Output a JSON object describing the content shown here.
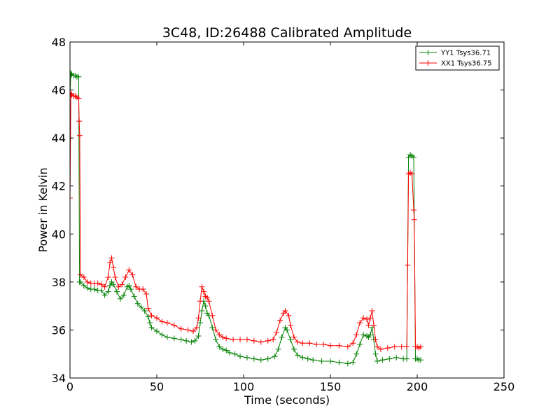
{
  "chart_data": {
    "type": "line",
    "title": "3C48, ID:26488 Calibrated Amplitude",
    "xlabel": "Time (seconds)",
    "ylabel": "Power in Kelvin",
    "xlim": [
      0,
      250
    ],
    "ylim": [
      34,
      48
    ],
    "xticks": [
      0,
      50,
      100,
      150,
      200,
      250
    ],
    "yticks": [
      34,
      36,
      38,
      40,
      42,
      44,
      46,
      48
    ],
    "grid": false,
    "legend_position": "top-right",
    "marker": "+",
    "series": [
      {
        "name": "YY1 Tsys36.71",
        "color": "#008000",
        "points": [
          [
            0,
            45.8
          ],
          [
            0.5,
            46.7
          ],
          [
            1,
            46.65
          ],
          [
            2,
            46.6
          ],
          [
            3,
            46.6
          ],
          [
            4,
            46.55
          ],
          [
            5,
            46.55
          ],
          [
            5.5,
            38.0
          ],
          [
            6,
            38.0
          ],
          [
            8,
            37.85
          ],
          [
            10,
            37.75
          ],
          [
            12,
            37.7
          ],
          [
            14,
            37.7
          ],
          [
            16,
            37.65
          ],
          [
            18,
            37.65
          ],
          [
            20,
            37.45
          ],
          [
            22,
            37.6
          ],
          [
            23,
            37.85
          ],
          [
            24,
            38.0
          ],
          [
            25,
            37.9
          ],
          [
            27,
            37.6
          ],
          [
            29,
            37.3
          ],
          [
            31,
            37.45
          ],
          [
            33,
            37.8
          ],
          [
            34,
            37.85
          ],
          [
            35,
            37.7
          ],
          [
            37,
            37.4
          ],
          [
            39,
            37.1
          ],
          [
            41,
            36.95
          ],
          [
            43,
            36.8
          ],
          [
            45,
            36.55
          ],
          [
            46,
            36.3
          ],
          [
            47,
            36.1
          ],
          [
            50,
            35.95
          ],
          [
            53,
            35.8
          ],
          [
            56,
            35.7
          ],
          [
            60,
            35.65
          ],
          [
            64,
            35.6
          ],
          [
            67,
            35.55
          ],
          [
            70,
            35.5
          ],
          [
            72,
            35.55
          ],
          [
            74,
            35.75
          ],
          [
            75,
            36.3
          ],
          [
            76,
            36.8
          ],
          [
            77,
            37.2
          ],
          [
            78,
            37.0
          ],
          [
            79,
            36.7
          ],
          [
            80,
            36.6
          ],
          [
            82,
            36.1
          ],
          [
            84,
            35.6
          ],
          [
            86,
            35.3
          ],
          [
            88,
            35.2
          ],
          [
            90,
            35.15
          ],
          [
            92,
            35.05
          ],
          [
            95,
            35.0
          ],
          [
            98,
            34.9
          ],
          [
            102,
            34.85
          ],
          [
            106,
            34.8
          ],
          [
            110,
            34.75
          ],
          [
            114,
            34.8
          ],
          [
            118,
            34.9
          ],
          [
            120,
            35.2
          ],
          [
            122,
            35.7
          ],
          [
            124,
            36.1
          ],
          [
            125,
            36.0
          ],
          [
            127,
            35.6
          ],
          [
            129,
            35.2
          ],
          [
            131,
            34.95
          ],
          [
            134,
            34.85
          ],
          [
            137,
            34.8
          ],
          [
            140,
            34.75
          ],
          [
            145,
            34.7
          ],
          [
            150,
            34.7
          ],
          [
            155,
            34.65
          ],
          [
            160,
            34.6
          ],
          [
            163,
            34.65
          ],
          [
            165,
            35.0
          ],
          [
            167,
            35.4
          ],
          [
            169,
            35.8
          ],
          [
            171,
            35.75
          ],
          [
            172,
            35.7
          ],
          [
            173,
            35.8
          ],
          [
            174,
            36.1
          ],
          [
            175,
            35.6
          ],
          [
            176,
            35.0
          ],
          [
            177,
            34.7
          ],
          [
            180,
            34.75
          ],
          [
            184,
            34.8
          ],
          [
            188,
            34.85
          ],
          [
            192,
            34.8
          ],
          [
            194,
            34.8
          ],
          [
            195,
            43.2
          ],
          [
            196,
            43.3
          ],
          [
            197,
            43.25
          ],
          [
            198,
            43.2
          ],
          [
            199,
            34.8
          ],
          [
            200,
            34.8
          ],
          [
            201,
            34.75
          ],
          [
            202,
            34.75
          ]
        ]
      },
      {
        "name": "XX1 Tsys36.75",
        "color": "#ff0000",
        "points": [
          [
            0,
            41.5
          ],
          [
            0.5,
            45.85
          ],
          [
            1,
            45.8
          ],
          [
            2,
            45.75
          ],
          [
            3,
            45.75
          ],
          [
            4,
            45.7
          ],
          [
            5,
            45.65
          ],
          [
            5.3,
            44.7
          ],
          [
            5.6,
            44.1
          ],
          [
            6,
            38.3
          ],
          [
            8,
            38.2
          ],
          [
            10,
            38.0
          ],
          [
            12,
            37.95
          ],
          [
            14,
            37.95
          ],
          [
            16,
            37.95
          ],
          [
            18,
            37.9
          ],
          [
            20,
            37.8
          ],
          [
            22,
            38.2
          ],
          [
            23,
            38.8
          ],
          [
            24,
            39.0
          ],
          [
            25,
            38.6
          ],
          [
            26,
            38.2
          ],
          [
            28,
            37.8
          ],
          [
            30,
            37.9
          ],
          [
            32,
            38.2
          ],
          [
            34,
            38.5
          ],
          [
            36,
            38.3
          ],
          [
            38,
            37.8
          ],
          [
            40,
            37.7
          ],
          [
            42,
            37.7
          ],
          [
            44,
            37.5
          ],
          [
            45,
            36.9
          ],
          [
            47,
            36.6
          ],
          [
            50,
            36.5
          ],
          [
            53,
            36.35
          ],
          [
            56,
            36.3
          ],
          [
            60,
            36.2
          ],
          [
            64,
            36.05
          ],
          [
            68,
            36.0
          ],
          [
            71,
            35.95
          ],
          [
            73,
            36.1
          ],
          [
            74,
            36.5
          ],
          [
            75,
            37.2
          ],
          [
            76,
            37.8
          ],
          [
            77,
            37.6
          ],
          [
            78,
            37.4
          ],
          [
            79,
            37.35
          ],
          [
            80,
            37.2
          ],
          [
            82,
            36.6
          ],
          [
            84,
            36.0
          ],
          [
            86,
            35.8
          ],
          [
            88,
            35.7
          ],
          [
            90,
            35.65
          ],
          [
            94,
            35.6
          ],
          [
            98,
            35.6
          ],
          [
            102,
            35.6
          ],
          [
            106,
            35.55
          ],
          [
            110,
            35.5
          ],
          [
            114,
            35.55
          ],
          [
            117,
            35.6
          ],
          [
            119,
            35.9
          ],
          [
            121,
            36.4
          ],
          [
            123,
            36.7
          ],
          [
            124,
            36.8
          ],
          [
            126,
            36.6
          ],
          [
            127,
            36.2
          ],
          [
            129,
            35.7
          ],
          [
            131,
            35.5
          ],
          [
            134,
            35.45
          ],
          [
            138,
            35.45
          ],
          [
            142,
            35.4
          ],
          [
            146,
            35.4
          ],
          [
            150,
            35.35
          ],
          [
            155,
            35.35
          ],
          [
            160,
            35.3
          ],
          [
            163,
            35.45
          ],
          [
            165,
            35.8
          ],
          [
            167,
            36.3
          ],
          [
            169,
            36.5
          ],
          [
            171,
            36.45
          ],
          [
            172,
            36.2
          ],
          [
            173,
            36.5
          ],
          [
            174,
            36.8
          ],
          [
            175,
            36.2
          ],
          [
            176,
            35.6
          ],
          [
            177,
            35.3
          ],
          [
            179,
            35.2
          ],
          [
            183,
            35.25
          ],
          [
            187,
            35.3
          ],
          [
            191,
            35.3
          ],
          [
            194,
            35.3
          ],
          [
            194.5,
            38.7
          ],
          [
            195,
            42.5
          ],
          [
            196,
            42.55
          ],
          [
            197,
            42.5
          ],
          [
            198,
            41.0
          ],
          [
            198.3,
            40.6
          ],
          [
            199,
            35.3
          ],
          [
            200,
            35.3
          ],
          [
            201,
            35.25
          ],
          [
            202,
            35.3
          ]
        ]
      }
    ]
  }
}
